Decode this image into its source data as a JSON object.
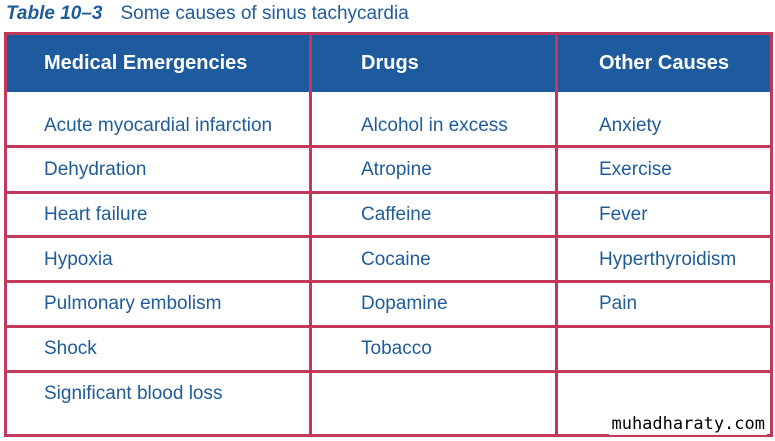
{
  "caption": {
    "number": "Table 10–3",
    "title": "Some causes of sinus tachycardia"
  },
  "headers": [
    "Medical Emergencies",
    "Drugs",
    "Other Causes"
  ],
  "rows": [
    [
      "Acute myocardial infarction",
      "Alcohol in excess",
      "Anxiety"
    ],
    [
      "Dehydration",
      "Atropine",
      "Exercise"
    ],
    [
      "Heart failure",
      "Caffeine",
      "Fever"
    ],
    [
      "Hypoxia",
      "Cocaine",
      "Hyperthyroidism"
    ],
    [
      "Pulmonary embolism",
      "Dopamine",
      "Pain"
    ],
    [
      "Shock",
      "Tobacco",
      ""
    ],
    [
      "Significant blood loss",
      "",
      ""
    ]
  ],
  "watermark": "muhadharaty.com",
  "colors": {
    "header_bg": "#1e5b9e",
    "grid": "#c2385a",
    "text": "#1f5c99"
  }
}
